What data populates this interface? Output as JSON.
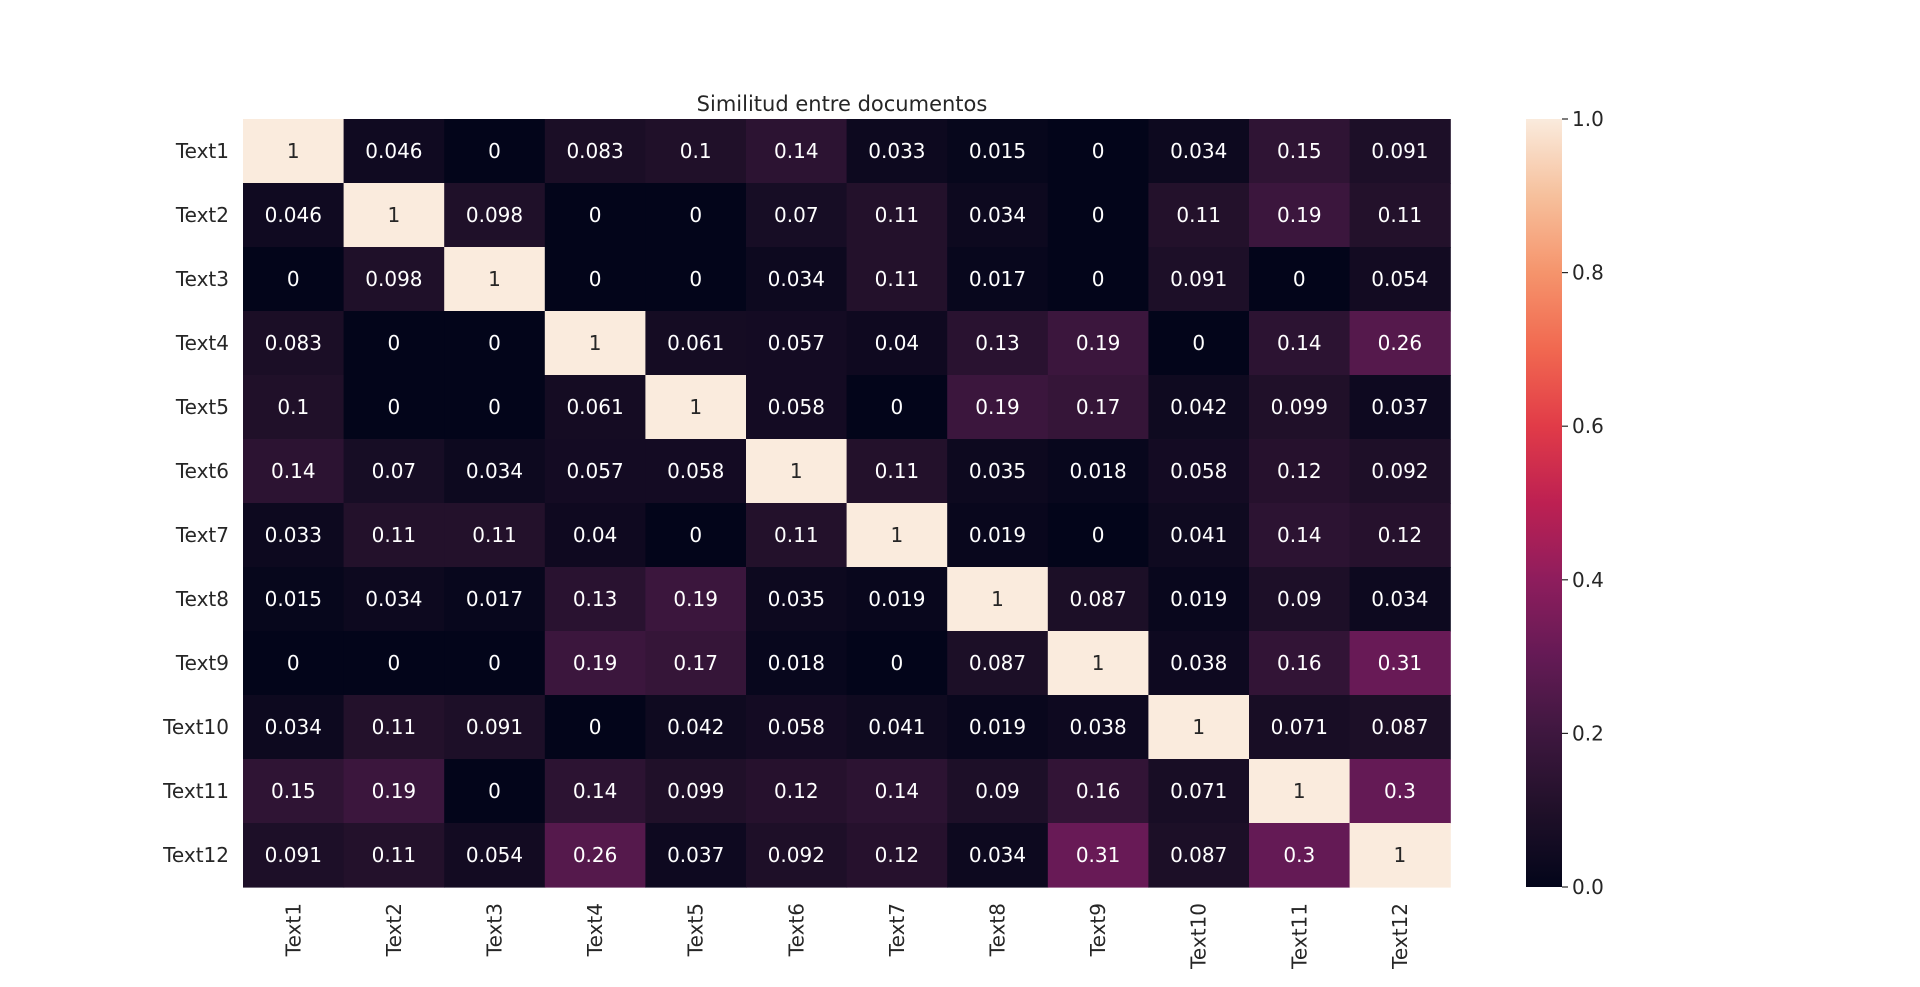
{
  "chart_data": {
    "type": "heatmap",
    "title": "Similitud entre documentos",
    "xlabel": "",
    "ylabel": "",
    "rows": [
      "Text1",
      "Text2",
      "Text3",
      "Text4",
      "Text5",
      "Text6",
      "Text7",
      "Text8",
      "Text9",
      "Text10",
      "Text11",
      "Text12"
    ],
    "columns": [
      "Text1",
      "Text2",
      "Text3",
      "Text4",
      "Text5",
      "Text6",
      "Text7",
      "Text8",
      "Text9",
      "Text10",
      "Text11",
      "Text12"
    ],
    "values": [
      [
        1,
        0.046,
        0,
        0.083,
        0.1,
        0.14,
        0.033,
        0.015,
        0,
        0.034,
        0.15,
        0.091
      ],
      [
        0.046,
        1,
        0.098,
        0,
        0,
        0.07,
        0.11,
        0.034,
        0,
        0.11,
        0.19,
        0.11
      ],
      [
        0,
        0.098,
        1,
        0,
        0,
        0.034,
        0.11,
        0.017,
        0,
        0.091,
        0,
        0.054
      ],
      [
        0.083,
        0,
        0,
        1,
        0.061,
        0.057,
        0.04,
        0.13,
        0.19,
        0,
        0.14,
        0.26
      ],
      [
        0.1,
        0,
        0,
        0.061,
        1,
        0.058,
        0,
        0.19,
        0.17,
        0.042,
        0.099,
        0.037
      ],
      [
        0.14,
        0.07,
        0.034,
        0.057,
        0.058,
        1,
        0.11,
        0.035,
        0.018,
        0.058,
        0.12,
        0.092
      ],
      [
        0.033,
        0.11,
        0.11,
        0.04,
        0,
        0.11,
        1,
        0.019,
        0,
        0.041,
        0.14,
        0.12
      ],
      [
        0.015,
        0.034,
        0.017,
        0.13,
        0.19,
        0.035,
        0.019,
        1,
        0.087,
        0.019,
        0.09,
        0.034
      ],
      [
        0,
        0,
        0,
        0.19,
        0.17,
        0.018,
        0,
        0.087,
        1,
        0.038,
        0.16,
        0.31
      ],
      [
        0.034,
        0.11,
        0.091,
        0,
        0.042,
        0.058,
        0.041,
        0.019,
        0.038,
        1,
        0.071,
        0.087
      ],
      [
        0.15,
        0.19,
        0,
        0.14,
        0.099,
        0.12,
        0.14,
        0.09,
        0.16,
        0.071,
        1,
        0.3
      ],
      [
        0.091,
        0.11,
        0.054,
        0.26,
        0.037,
        0.092,
        0.12,
        0.034,
        0.31,
        0.087,
        0.3,
        1
      ]
    ],
    "annotations": true,
    "colormap": "rocket",
    "colorbar": {
      "range": [
        0,
        1
      ],
      "ticks": [
        0,
        0.2,
        0.4,
        0.6,
        0.8,
        1.0
      ],
      "tick_labels": [
        "0.0",
        "0.2",
        "0.4",
        "0.6",
        "0.8",
        "1.0"
      ],
      "placement": "right"
    },
    "grid": false
  }
}
